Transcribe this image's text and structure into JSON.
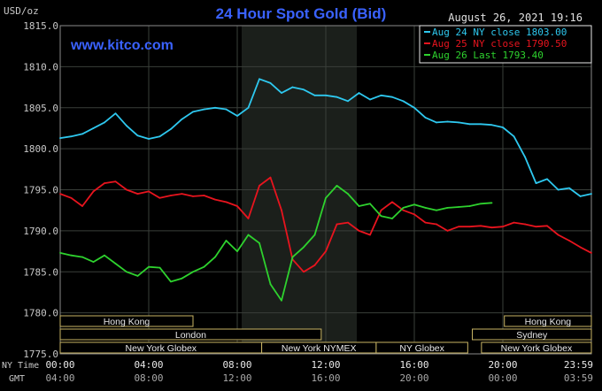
{
  "header": {
    "unit_label": "USD/oz",
    "title": "24 Hour Spot Gold (Bid)",
    "timestamp": "August 26, 2021 19:16",
    "brand": "www.kitco.com"
  },
  "colors": {
    "background": "#000000",
    "plot_background": "#000000",
    "highlight_band": "#1b1f1b",
    "grid": "#3a3f3a",
    "axis_text": "#c8c8c8",
    "title": "#3a62ff",
    "brand": "#3a62ff",
    "legend_border": "#e8e8e8",
    "session_box": "#c8b464",
    "session_text": "#e8e8e8"
  },
  "chart_data": {
    "type": "line",
    "title": "24 Hour Spot Gold (Bid)",
    "ylabel": "USD/oz",
    "ylim": [
      1775.0,
      1815.0
    ],
    "xlim": [
      0,
      24
    ],
    "y_ticks": [
      "1815.0",
      "1810.0",
      "1805.0",
      "1800.0",
      "1795.0",
      "1790.0",
      "1785.0",
      "1780.0",
      "1775.0"
    ],
    "y_tick_values": [
      1815,
      1810,
      1805,
      1800,
      1795,
      1790,
      1785,
      1780,
      1775
    ],
    "x_tick_values": [
      0,
      4,
      8,
      12,
      16,
      20,
      24
    ],
    "x_ticks_ny": [
      "00:00",
      "04:00",
      "08:00",
      "12:00",
      "16:00",
      "20:00",
      "23:59"
    ],
    "x_ticks_gmt": [
      "04:00",
      "08:00",
      "12:00",
      "16:00",
      "20:00",
      "00:00",
      "03:59"
    ],
    "x_row_label_ny": "NY Time",
    "x_row_label_gmt": "GMT",
    "highlight_range": [
      8.2,
      13.4
    ],
    "grid": true,
    "legend_position": "top-right",
    "legend": [
      {
        "date": "Aug 24",
        "label": "NY close",
        "value": "1803.00",
        "color": "#2ec8ef"
      },
      {
        "date": "Aug 25",
        "label": "NY close",
        "value": "1790.50",
        "color": "#e8141e"
      },
      {
        "date": "Aug 26",
        "label": "Last",
        "value": "1793.40",
        "color": "#2ed22e"
      }
    ],
    "sessions": [
      {
        "name": "Hong Kong",
        "start": 0,
        "end": 14.5,
        "row": 0
      },
      {
        "name": "London",
        "start": 0,
        "end": 28.5,
        "row": 1
      },
      {
        "name": "New York Globex",
        "start": 0,
        "end": 22.0,
        "row": 2
      },
      {
        "name": "New York NYMEX",
        "start": 22.0,
        "end": 34.5,
        "row": 2
      },
      {
        "name": "NY Globex",
        "start": 34.5,
        "end": 44.5,
        "row": 2
      },
      {
        "name": "Hong Kong",
        "start": 48.5,
        "end": 58.0,
        "row": 0
      },
      {
        "name": "Sydney",
        "start": 45.0,
        "end": 58.0,
        "row": 1
      },
      {
        "name": "New York Globex",
        "start": 46.0,
        "end": 58.0,
        "row": 2
      }
    ],
    "series": [
      {
        "name": "Aug 24",
        "color": "#2ec8ef",
        "x": [
          0,
          0.5,
          1,
          1.5,
          2,
          2.5,
          3,
          3.5,
          4,
          4.5,
          5,
          5.5,
          6,
          6.5,
          7,
          7.5,
          8,
          8.5,
          9,
          9.5,
          10,
          10.5,
          11,
          11.5,
          12,
          12.5,
          13,
          13.5,
          14,
          14.5,
          15,
          15.5,
          16,
          16.5,
          17,
          17.5,
          18,
          18.5,
          19,
          19.5,
          20,
          20.5,
          21,
          21.5,
          22,
          22.5,
          23,
          23.5,
          24
        ],
        "values": [
          1801.3,
          1801.5,
          1801.8,
          1802.5,
          1803.2,
          1804.3,
          1802.8,
          1801.6,
          1801.2,
          1801.5,
          1802.4,
          1803.6,
          1804.5,
          1804.8,
          1805.0,
          1804.8,
          1804.0,
          1805.0,
          1808.5,
          1808.0,
          1806.8,
          1807.5,
          1807.2,
          1806.5,
          1806.5,
          1806.3,
          1805.8,
          1806.8,
          1806.0,
          1806.5,
          1806.3,
          1805.8,
          1805.0,
          1803.8,
          1803.2,
          1803.3,
          1803.2,
          1803.0,
          1803.0,
          1802.9,
          1802.6,
          1801.5,
          1799.0,
          1795.8,
          1796.3,
          1795.0,
          1795.2,
          1794.2,
          1794.5
        ]
      },
      {
        "name": "Aug 25",
        "color": "#e8141e",
        "x": [
          0,
          0.5,
          1,
          1.5,
          2,
          2.5,
          3,
          3.5,
          4,
          4.5,
          5,
          5.5,
          6,
          6.5,
          7,
          7.5,
          8,
          8.5,
          9,
          9.5,
          10,
          10.5,
          11,
          11.5,
          12,
          12.5,
          13,
          13.5,
          14,
          14.5,
          15,
          15.5,
          16,
          16.5,
          17,
          17.5,
          18,
          18.5,
          19,
          19.5,
          20,
          20.5,
          21,
          21.5,
          22,
          22.5,
          23,
          23.5,
          24
        ],
        "values": [
          1794.5,
          1794.0,
          1793.0,
          1794.8,
          1795.8,
          1796.0,
          1795.0,
          1794.5,
          1794.8,
          1794.0,
          1794.3,
          1794.5,
          1794.2,
          1794.3,
          1793.8,
          1793.5,
          1793.0,
          1791.5,
          1795.5,
          1796.5,
          1792.5,
          1786.5,
          1785.0,
          1785.8,
          1787.5,
          1790.8,
          1791.0,
          1790.0,
          1789.5,
          1792.5,
          1793.5,
          1792.5,
          1792.0,
          1791.0,
          1790.8,
          1790.0,
          1790.5,
          1790.5,
          1790.6,
          1790.4,
          1790.5,
          1791.0,
          1790.8,
          1790.5,
          1790.6,
          1789.5,
          1788.8,
          1788.0,
          1787.3
        ]
      },
      {
        "name": "Aug 26",
        "color": "#2ed22e",
        "x": [
          0,
          0.5,
          1,
          1.5,
          2,
          2.5,
          3,
          3.5,
          4,
          4.5,
          5,
          5.5,
          6,
          6.5,
          7,
          7.5,
          8,
          8.5,
          9,
          9.5,
          10,
          10.5,
          11,
          11.5,
          12,
          12.5,
          13,
          13.5,
          14,
          14.5,
          15,
          15.5,
          16,
          16.5,
          17,
          17.5,
          18,
          18.5,
          19,
          19.5
        ],
        "values": [
          1787.3,
          1787.0,
          1786.8,
          1786.2,
          1787.0,
          1786.0,
          1785.0,
          1784.5,
          1785.6,
          1785.5,
          1783.8,
          1784.2,
          1785.0,
          1785.6,
          1786.8,
          1788.8,
          1787.5,
          1789.5,
          1788.5,
          1783.5,
          1781.5,
          1786.8,
          1788.0,
          1789.5,
          1794.0,
          1795.5,
          1794.5,
          1793.0,
          1793.3,
          1791.8,
          1791.5,
          1792.8,
          1793.2,
          1792.8,
          1792.5,
          1792.8,
          1792.9,
          1793.0,
          1793.3,
          1793.4
        ]
      }
    ]
  }
}
